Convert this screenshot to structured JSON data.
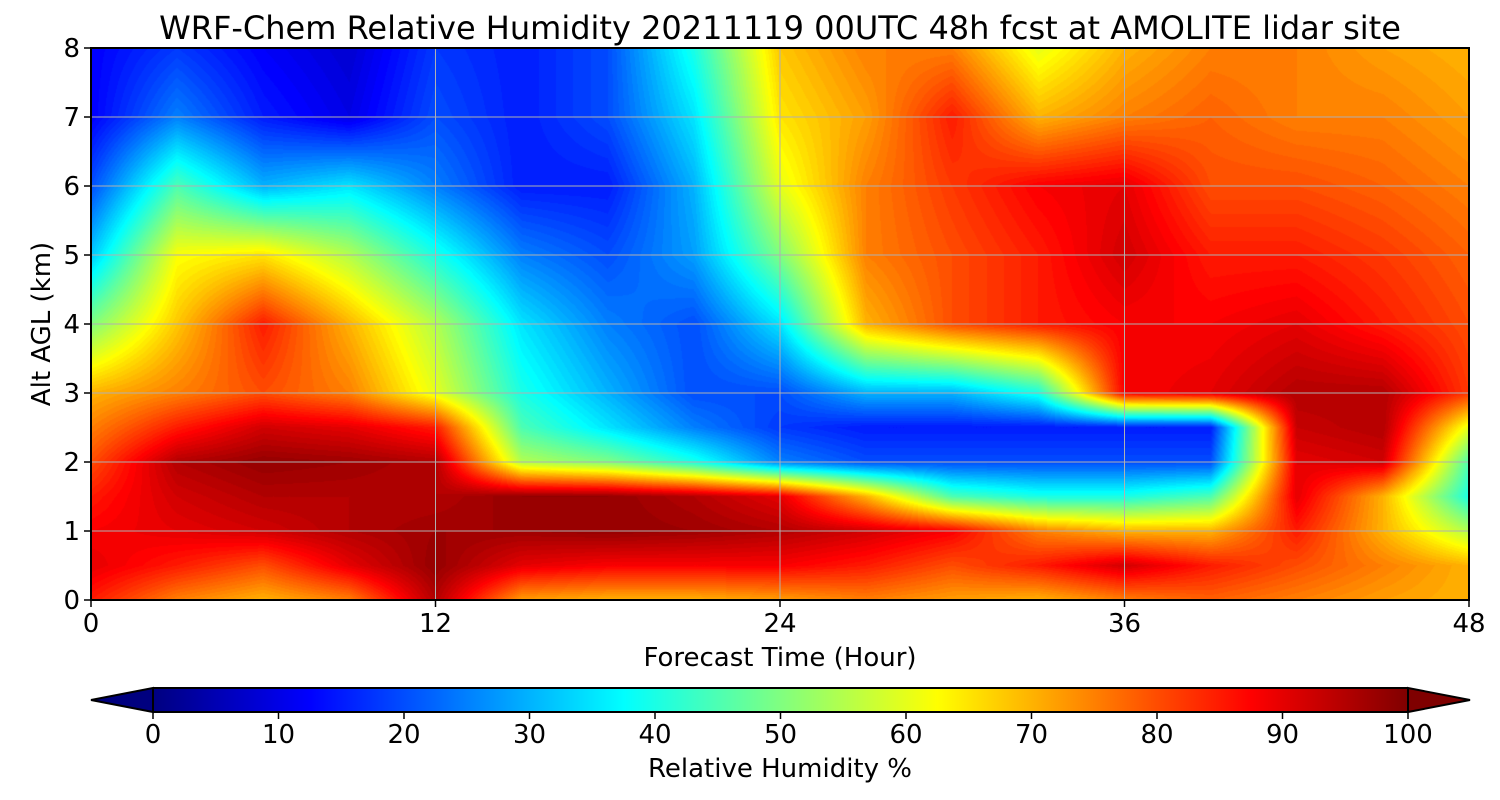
{
  "chart_data": {
    "type": "heatmap",
    "title": "WRF-Chem Relative Humidity 20211119 00UTC 48h fcst at AMOLITE lidar site",
    "xlabel": "Forecast Time (Hour)",
    "ylabel": "Alt AGL (km)",
    "xlim": [
      0,
      48
    ],
    "ylim": [
      0,
      8
    ],
    "x_ticks": [
      0,
      12,
      24,
      36,
      48
    ],
    "y_ticks": [
      0,
      1,
      2,
      3,
      4,
      5,
      6,
      7,
      8
    ],
    "grid": true,
    "colormap": "jet",
    "colorbar": {
      "label": "Relative Humidity %",
      "orientation": "horizontal",
      "placement": "bottom",
      "extend": "both",
      "range": [
        0,
        100
      ],
      "ticks": [
        0,
        10,
        20,
        30,
        40,
        50,
        60,
        70,
        80,
        90,
        100
      ]
    },
    "x": [
      0,
      3,
      6,
      9,
      12,
      15,
      18,
      21,
      24,
      27,
      30,
      33,
      36,
      39,
      42,
      45,
      48
    ],
    "y": [
      0,
      0.5,
      1,
      1.5,
      2,
      2.5,
      3,
      4,
      5,
      6,
      7,
      8
    ],
    "z": [
      [
        85,
        75,
        70,
        75,
        95,
        72,
        70,
        70,
        72,
        75,
        72,
        70,
        75,
        78,
        75,
        72,
        70
      ],
      [
        90,
        85,
        80,
        90,
        98,
        90,
        88,
        88,
        88,
        85,
        80,
        85,
        92,
        85,
        80,
        75,
        70
      ],
      [
        88,
        90,
        92,
        95,
        97,
        97,
        98,
        97,
        95,
        92,
        88,
        75,
        70,
        70,
        85,
        70,
        55
      ],
      [
        85,
        92,
        95,
        95,
        95,
        98,
        98,
        95,
        90,
        70,
        45,
        40,
        40,
        45,
        90,
        70,
        40
      ],
      [
        80,
        95,
        98,
        97,
        95,
        55,
        50,
        40,
        25,
        20,
        20,
        20,
        20,
        20,
        90,
        92,
        45
      ],
      [
        75,
        85,
        92,
        90,
        85,
        45,
        35,
        25,
        18,
        15,
        15,
        15,
        15,
        15,
        93,
        95,
        60
      ],
      [
        70,
        75,
        80,
        75,
        60,
        40,
        30,
        20,
        20,
        30,
        30,
        40,
        88,
        90,
        95,
        95,
        82
      ],
      [
        50,
        68,
        85,
        70,
        55,
        35,
        25,
        20,
        35,
        70,
        80,
        85,
        88,
        88,
        90,
        85,
        80
      ],
      [
        32,
        62,
        65,
        55,
        40,
        25,
        20,
        28,
        50,
        75,
        80,
        85,
        92,
        85,
        85,
        82,
        78
      ],
      [
        20,
        45,
        30,
        35,
        25,
        15,
        15,
        30,
        60,
        75,
        82,
        88,
        90,
        80,
        80,
        78,
        75
      ],
      [
        12,
        25,
        15,
        10,
        20,
        15,
        20,
        35,
        65,
        72,
        85,
        70,
        75,
        78,
        75,
        75,
        72
      ],
      [
        12,
        18,
        12,
        8,
        18,
        15,
        20,
        40,
        68,
        75,
        75,
        60,
        70,
        75,
        75,
        72,
        70
      ]
    ]
  }
}
